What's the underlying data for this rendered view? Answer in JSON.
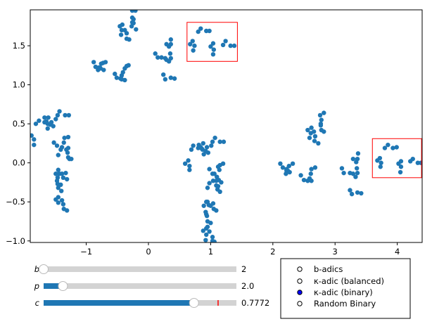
{
  "chart_data": {
    "type": "scatter",
    "title": "",
    "xlabel": "",
    "ylabel": "",
    "xlim": [
      -1.9,
      4.4
    ],
    "ylim": [
      -1.02,
      1.96
    ],
    "xticks": [
      {
        "v": -1,
        "label": "−1"
      },
      {
        "v": 0,
        "label": "0"
      },
      {
        "v": 1,
        "label": "1"
      },
      {
        "v": 2,
        "label": "2"
      },
      {
        "v": 3,
        "label": "3"
      },
      {
        "v": 4,
        "label": "4"
      }
    ],
    "yticks": [
      {
        "v": -1.0,
        "label": "−1.0"
      },
      {
        "v": -0.5,
        "label": "−0.5"
      },
      {
        "v": 0.0,
        "label": "0.0"
      },
      {
        "v": 0.5,
        "label": "0.5"
      },
      {
        "v": 1.0,
        "label": "1.0"
      },
      {
        "v": 1.5,
        "label": "1.5"
      }
    ],
    "grid": false,
    "point_color": "#1f77b4",
    "highlight_color": "#ff0000",
    "highlight_boxes": [
      {
        "x": [
          0.62,
          1.43
        ],
        "y": [
          1.3,
          1.8
        ]
      },
      {
        "x": [
          3.6,
          4.39
        ],
        "y": [
          -0.19,
          0.31
        ]
      }
    ],
    "points": [
      [
        -0.26,
        1.95
      ],
      [
        -0.21,
        1.95
      ],
      [
        -0.26,
        1.86
      ],
      [
        -0.24,
        1.84
      ],
      [
        -0.26,
        1.8
      ],
      [
        -0.24,
        1.79
      ],
      [
        -0.27,
        1.75
      ],
      [
        -0.2,
        1.71
      ],
      [
        -0.46,
        1.75
      ],
      [
        -0.42,
        1.77
      ],
      [
        -0.43,
        1.7
      ],
      [
        -0.38,
        1.7
      ],
      [
        -0.44,
        1.64
      ],
      [
        -0.35,
        1.66
      ],
      [
        -0.35,
        1.59
      ],
      [
        -0.31,
        1.58
      ],
      [
        -0.88,
        1.29
      ],
      [
        -0.85,
        1.23
      ],
      [
        -0.81,
        1.19
      ],
      [
        -0.8,
        1.22
      ],
      [
        -0.78,
        1.22
      ],
      [
        -0.77,
        1.21
      ],
      [
        -0.76,
        1.27
      ],
      [
        -0.72,
        1.19
      ],
      [
        -0.69,
        1.29
      ],
      [
        -0.73,
        1.28
      ],
      [
        -0.54,
        1.14
      ],
      [
        -0.51,
        1.09
      ],
      [
        -0.45,
        1.08
      ],
      [
        -0.43,
        1.12
      ],
      [
        -0.41,
        1.16
      ],
      [
        -0.38,
        1.21
      ],
      [
        -0.35,
        1.24
      ],
      [
        -0.32,
        1.25
      ],
      [
        -0.38,
        1.06
      ],
      [
        -0.43,
        1.07
      ],
      [
        0.11,
        1.4
      ],
      [
        0.15,
        1.35
      ],
      [
        0.21,
        1.35
      ],
      [
        0.27,
        1.34
      ],
      [
        0.29,
        1.32
      ],
      [
        0.33,
        1.3
      ],
      [
        0.29,
        1.52
      ],
      [
        0.33,
        1.49
      ],
      [
        0.36,
        1.52
      ],
      [
        0.36,
        1.58
      ],
      [
        0.35,
        1.4
      ],
      [
        0.36,
        1.34
      ],
      [
        0.24,
        1.13
      ],
      [
        0.27,
        1.07
      ],
      [
        0.36,
        1.09
      ],
      [
        0.42,
        1.08
      ],
      [
        0.67,
        1.52
      ],
      [
        0.71,
        1.56
      ],
      [
        0.74,
        1.5
      ],
      [
        0.72,
        1.44
      ],
      [
        0.8,
        1.68
      ],
      [
        0.84,
        1.72
      ],
      [
        0.93,
        1.69
      ],
      [
        0.98,
        1.69
      ],
      [
        1.0,
        1.49
      ],
      [
        1.04,
        1.53
      ],
      [
        1.05,
        1.45
      ],
      [
        1.04,
        1.39
      ],
      [
        1.2,
        1.51
      ],
      [
        1.24,
        1.56
      ],
      [
        1.32,
        1.5
      ],
      [
        1.38,
        1.5
      ],
      [
        -1.88,
        0.35
      ],
      [
        -1.84,
        0.3
      ],
      [
        -1.84,
        0.23
      ],
      [
        -1.81,
        0.5
      ],
      [
        -1.76,
        0.54
      ],
      [
        -1.67,
        0.58
      ],
      [
        -1.67,
        0.52
      ],
      [
        -1.64,
        0.53
      ],
      [
        -1.62,
        0.5
      ],
      [
        -1.61,
        0.58
      ],
      [
        -1.62,
        0.44
      ],
      [
        -1.58,
        0.49
      ],
      [
        -1.56,
        0.52
      ],
      [
        -1.53,
        0.47
      ],
      [
        -1.49,
        0.56
      ],
      [
        -1.46,
        0.61
      ],
      [
        -1.43,
        0.66
      ],
      [
        -1.34,
        0.61
      ],
      [
        -1.28,
        0.61
      ],
      [
        -1.52,
        0.26
      ],
      [
        -1.47,
        0.22
      ],
      [
        -1.45,
        0.1
      ],
      [
        -1.41,
        0.17
      ],
      [
        -1.39,
        0.2
      ],
      [
        -1.36,
        0.26
      ],
      [
        -1.35,
        0.32
      ],
      [
        -1.32,
        0.17
      ],
      [
        -1.29,
        0.19
      ],
      [
        -1.29,
        0.33
      ],
      [
        -1.3,
        0.13
      ],
      [
        -1.29,
        0.07
      ],
      [
        -1.27,
        0.05
      ],
      [
        -1.24,
        0.05
      ],
      [
        -1.49,
        -0.14
      ],
      [
        -1.46,
        -0.19
      ],
      [
        -1.45,
        -0.09
      ],
      [
        -1.44,
        -0.14
      ],
      [
        -1.43,
        -0.14
      ],
      [
        -1.47,
        -0.23
      ],
      [
        -1.46,
        -0.27
      ],
      [
        -1.41,
        -0.28
      ],
      [
        -1.39,
        -0.14
      ],
      [
        -1.37,
        -0.19
      ],
      [
        -1.33,
        -0.13
      ],
      [
        -1.31,
        -0.21
      ],
      [
        -1.45,
        -0.32
      ],
      [
        -1.4,
        -0.36
      ],
      [
        -1.49,
        -0.47
      ],
      [
        -1.45,
        -0.44
      ],
      [
        -1.39,
        -0.48
      ],
      [
        -1.45,
        -0.51
      ],
      [
        -1.37,
        -0.53
      ],
      [
        -1.36,
        -0.59
      ],
      [
        -1.31,
        -0.61
      ],
      [
        0.59,
        -0.01
      ],
      [
        0.64,
        0.03
      ],
      [
        0.66,
        -0.04
      ],
      [
        0.66,
        -0.09
      ],
      [
        0.69,
        0.17
      ],
      [
        0.72,
        0.22
      ],
      [
        0.8,
        0.19
      ],
      [
        0.81,
        0.23
      ],
      [
        0.84,
        0.2
      ],
      [
        0.86,
        0.18
      ],
      [
        0.87,
        0.17
      ],
      [
        0.88,
        0.25
      ],
      [
        0.89,
        0.11
      ],
      [
        0.92,
        0.15
      ],
      [
        0.94,
        0.2
      ],
      [
        0.96,
        0.13
      ],
      [
        1.01,
        0.22
      ],
      [
        1.03,
        0.27
      ],
      [
        1.07,
        0.32
      ],
      [
        1.15,
        0.27
      ],
      [
        1.21,
        0.27
      ],
      [
        0.98,
        -0.08
      ],
      [
        1.03,
        -0.14
      ],
      [
        1.06,
        -0.14
      ],
      [
        1.1,
        -0.18
      ],
      [
        1.14,
        -0.09
      ],
      [
        1.15,
        -0.03
      ],
      [
        1.2,
        -0.01
      ],
      [
        0.98,
        -0.26
      ],
      [
        0.95,
        -0.32
      ],
      [
        1.04,
        -0.23
      ],
      [
        1.09,
        -0.23
      ],
      [
        1.09,
        -0.29
      ],
      [
        1.11,
        -0.34
      ],
      [
        1.15,
        -0.37
      ],
      [
        1.12,
        -0.05
      ],
      [
        1.13,
        -0.22
      ],
      [
        1.17,
        -0.25
      ],
      [
        1.12,
        -0.3
      ],
      [
        0.89,
        -0.55
      ],
      [
        0.93,
        -0.5
      ],
      [
        0.95,
        -0.5
      ],
      [
        0.92,
        -0.63
      ],
      [
        0.93,
        -0.66
      ],
      [
        0.94,
        -0.68
      ],
      [
        0.97,
        -0.54
      ],
      [
        1.0,
        -0.55
      ],
      [
        1.04,
        -0.52
      ],
      [
        1.05,
        -0.59
      ],
      [
        1.09,
        -0.61
      ],
      [
        0.95,
        -0.75
      ],
      [
        1.0,
        -0.77
      ],
      [
        0.88,
        -0.87
      ],
      [
        0.93,
        -0.84
      ],
      [
        0.95,
        -0.82
      ],
      [
        0.93,
        -0.92
      ],
      [
        0.92,
        -0.99
      ],
      [
        0.98,
        -0.88
      ],
      [
        1.03,
        -0.95
      ],
      [
        1.03,
        -1.0
      ],
      [
        1.06,
        -1.01
      ],
      [
        2.12,
        -0.01
      ],
      [
        2.16,
        -0.06
      ],
      [
        2.21,
        -0.14
      ],
      [
        2.22,
        -0.1
      ],
      [
        2.22,
        -0.08
      ],
      [
        2.24,
        -0.1
      ],
      [
        2.27,
        -0.12
      ],
      [
        2.26,
        -0.04
      ],
      [
        2.32,
        -0.01
      ],
      [
        2.45,
        -0.16
      ],
      [
        2.5,
        -0.22
      ],
      [
        2.56,
        -0.23
      ],
      [
        2.59,
        -0.2
      ],
      [
        2.61,
        -0.14
      ],
      [
        2.62,
        -0.23
      ],
      [
        2.62,
        -0.08
      ],
      [
        2.68,
        -0.06
      ],
      [
        2.56,
        0.42
      ],
      [
        2.59,
        0.32
      ],
      [
        2.62,
        0.45
      ],
      [
        2.61,
        0.38
      ],
      [
        2.66,
        0.4
      ],
      [
        2.68,
        0.34
      ],
      [
        2.67,
        0.28
      ],
      [
        2.73,
        0.25
      ],
      [
        2.76,
        0.61
      ],
      [
        2.82,
        0.64
      ],
      [
        2.78,
        0.55
      ],
      [
        2.77,
        0.5
      ],
      [
        2.77,
        0.48
      ],
      [
        2.78,
        0.42
      ],
      [
        2.82,
        0.4
      ],
      [
        3.11,
        -0.07
      ],
      [
        3.14,
        -0.13
      ],
      [
        3.24,
        -0.13
      ],
      [
        3.29,
        -0.14
      ],
      [
        3.33,
        -0.18
      ],
      [
        3.35,
        -0.07
      ],
      [
        3.36,
        -0.13
      ],
      [
        3.29,
        0.05
      ],
      [
        3.34,
        0.01
      ],
      [
        3.36,
        0.05
      ],
      [
        3.37,
        0.12
      ],
      [
        3.24,
        -0.35
      ],
      [
        3.27,
        -0.4
      ],
      [
        3.36,
        -0.38
      ],
      [
        3.42,
        -0.39
      ],
      [
        3.68,
        0.03
      ],
      [
        3.72,
        0.06
      ],
      [
        3.74,
        0.0
      ],
      [
        3.73,
        -0.05
      ],
      [
        3.8,
        0.19
      ],
      [
        3.85,
        0.23
      ],
      [
        3.93,
        0.19
      ],
      [
        3.99,
        0.2
      ],
      [
        4.02,
        -0.01
      ],
      [
        4.06,
        0.02
      ],
      [
        4.06,
        -0.05
      ],
      [
        4.05,
        -0.12
      ],
      [
        4.21,
        0.02
      ],
      [
        4.25,
        0.05
      ],
      [
        4.33,
        0.0
      ],
      [
        4.38,
        0.0
      ]
    ]
  },
  "sliders": [
    {
      "label": "b",
      "value_text": "2",
      "fraction": 0.0,
      "fill_color": "#1f77b4"
    },
    {
      "label": "p",
      "value_text": "2.0",
      "fraction": 0.1,
      "fill_color": "#1f77b4"
    },
    {
      "label": "c",
      "value_text": "0.7772",
      "fraction": 0.78,
      "initial_fraction": 0.905,
      "fill_color": "#1f77b4",
      "initial_marker_color": "#ff0000"
    }
  ],
  "radio": {
    "options": [
      "b-adics",
      "κ-adic (balanced)",
      "κ-adic (binary)",
      "Random Binary"
    ],
    "selected_index": 2,
    "selected_color": "#0000ff"
  }
}
